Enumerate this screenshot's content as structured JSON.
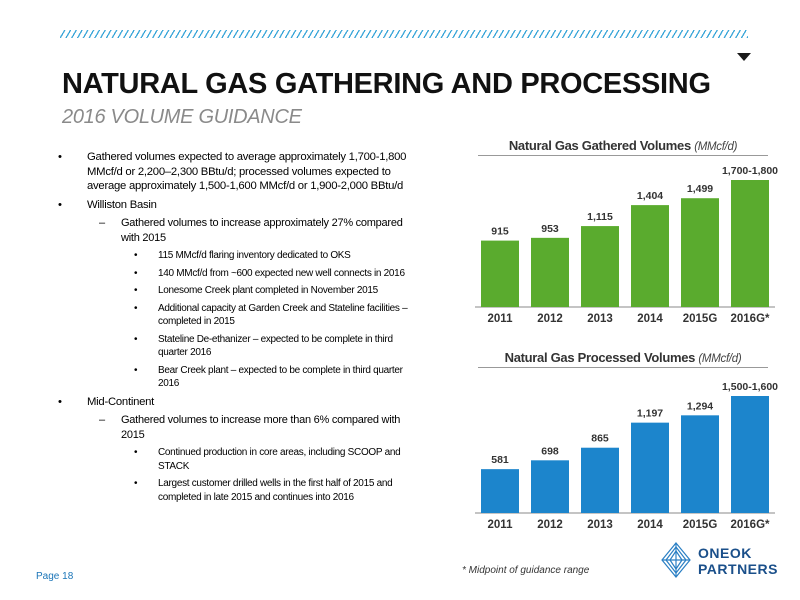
{
  "slide": {
    "title": "NATURAL GAS GATHERING AND PROCESSING",
    "subtitle": "2016 VOLUME GUIDANCE",
    "page_label": "Page 18",
    "footnote": "* Midpoint of guidance range"
  },
  "bullets": [
    {
      "level": 1,
      "text": "Gathered volumes expected to average approximately 1,700-1,800 MMcf/d or 2,200–2,300 BBtu/d; processed volumes expected to average approximately 1,500-1,600 MMcf/d or 1,900-2,000 BBtu/d"
    },
    {
      "level": 1,
      "text": "Williston Basin"
    },
    {
      "level": 2,
      "text": "Gathered volumes to increase approximately 27% compared with 2015"
    },
    {
      "level": 3,
      "text": "115 MMcf/d flaring inventory dedicated to OKS"
    },
    {
      "level": 3,
      "text": "140 MMcf/d from ~600 expected new well connects in 2016"
    },
    {
      "level": 3,
      "text": "Lonesome Creek plant completed in November 2015"
    },
    {
      "level": 3,
      "text": "Additional capacity at Garden Creek and Stateline facilities – completed in 2015"
    },
    {
      "level": 3,
      "text": "Stateline De-ethanizer – expected to be complete in third quarter 2016"
    },
    {
      "level": 3,
      "text": "Bear Creek plant – expected to be complete in third quarter 2016"
    },
    {
      "level": 1,
      "text": "Mid-Continent"
    },
    {
      "level": 2,
      "text": "Gathered volumes to increase more than 6% compared with 2015"
    },
    {
      "level": 3,
      "text": "Continued production in core areas, including SCOOP and STACK"
    },
    {
      "level": 3,
      "text": "Largest customer drilled wells in the first half of 2015 and completed in late 2015 and continues into 2016"
    }
  ],
  "logo": {
    "line1": "ONEOK",
    "line2": "PARTNERS"
  },
  "chart_data": [
    {
      "type": "bar",
      "title": "Natural Gas Gathered Volumes",
      "unit_label": "(MMcf/d)",
      "categories": [
        "2011",
        "2012",
        "2013",
        "2014",
        "2015G",
        "2016G*"
      ],
      "values": [
        915,
        953,
        1115,
        1404,
        1499,
        1750
      ],
      "value_labels": [
        "915",
        "953",
        "1,115",
        "1,404",
        "1,499",
        "1,700-1,800"
      ],
      "ylim": [
        0,
        1750
      ],
      "color": "#5aab2e",
      "grid": false,
      "legend": "none"
    },
    {
      "type": "bar",
      "title": "Natural Gas Processed Volumes",
      "unit_label": "(MMcf/d)",
      "categories": [
        "2011",
        "2012",
        "2013",
        "2014",
        "2015G",
        "2016G*"
      ],
      "values": [
        581,
        698,
        865,
        1197,
        1294,
        1550
      ],
      "value_labels": [
        "581",
        "698",
        "865",
        "1,197",
        "1,294",
        "1,500-1,600"
      ],
      "ylim": [
        0,
        1550
      ],
      "color": "#1c85cc",
      "grid": false,
      "legend": "none"
    }
  ]
}
